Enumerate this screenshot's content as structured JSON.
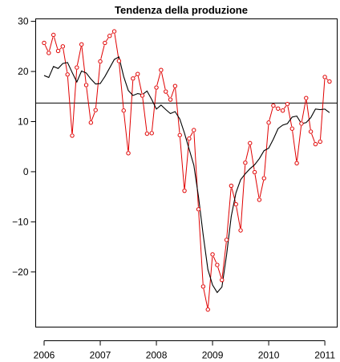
{
  "chart_data": {
    "type": "line",
    "title": "Tendenza della produzione",
    "xlabel": "",
    "ylabel": "",
    "xlim": [
      2005.85,
      2011.22
    ],
    "ylim": [
      -31,
      30.5
    ],
    "x_ticks": [
      2006,
      2007,
      2008,
      2009,
      2010,
      2011
    ],
    "x_tick_labels": [
      "2006",
      "2007",
      "2008",
      "2009",
      "2010",
      "2011"
    ],
    "y_ticks": [
      -20,
      -10,
      0,
      10,
      20,
      30
    ],
    "y_tick_labels": [
      "−20",
      "−10",
      "0",
      "10",
      "20",
      "30"
    ],
    "grid": false,
    "legend": "none",
    "colors": {
      "monthly": "#e00000",
      "trend": "#000000",
      "reference": "#000000"
    },
    "reference_line_y": 13.7,
    "x": [
      2006.0,
      2006.083,
      2006.167,
      2006.25,
      2006.333,
      2006.417,
      2006.5,
      2006.583,
      2006.667,
      2006.75,
      2006.833,
      2006.917,
      2007.0,
      2007.083,
      2007.167,
      2007.25,
      2007.333,
      2007.417,
      2007.5,
      2007.583,
      2007.667,
      2007.75,
      2007.833,
      2007.917,
      2008.0,
      2008.083,
      2008.167,
      2008.25,
      2008.333,
      2008.417,
      2008.5,
      2008.583,
      2008.667,
      2008.75,
      2008.833,
      2008.917,
      2009.0,
      2009.083,
      2009.167,
      2009.25,
      2009.333,
      2009.417,
      2009.5,
      2009.583,
      2009.667,
      2009.75,
      2009.833,
      2009.917,
      2010.0,
      2010.083,
      2010.167,
      2010.25,
      2010.333,
      2010.417,
      2010.5,
      2010.583,
      2010.667,
      2010.75,
      2010.833,
      2010.917,
      2011.0,
      2011.083
    ],
    "series": [
      {
        "values": [
          25.7,
          23.7,
          27.3,
          24.1,
          25.0,
          19.4,
          7.2,
          20.8,
          25.4,
          17.3,
          9.8,
          12.3,
          22.0,
          25.7,
          27.1,
          28.0,
          22.1,
          12.2,
          3.7,
          18.6,
          19.5,
          15.2,
          7.6,
          7.7,
          16.8,
          20.3,
          16.0,
          14.4,
          17.1,
          7.3,
          -3.8,
          6.6,
          8.3,
          -7.5,
          -22.9,
          -27.5,
          -16.5,
          -18.6,
          -21.6,
          -13.6,
          -2.8,
          -6.5,
          -11.7,
          1.8,
          5.7,
          -0.1,
          -5.6,
          -1.3,
          9.8,
          13.2,
          12.6,
          12.2,
          13.5,
          8.6,
          1.7,
          9.6,
          14.7,
          8.0,
          5.5,
          6.0,
          18.9,
          18.0
        ]
      },
      {
        "values": [
          19.2,
          18.8,
          21.0,
          20.6,
          21.6,
          21.8,
          19.8,
          17.9,
          20.1,
          19.7,
          18.5,
          17.5,
          17.6,
          19.0,
          20.7,
          22.4,
          22.9,
          19.0,
          16.2,
          15.2,
          15.6,
          15.4,
          16.1,
          14.4,
          12.5,
          13.3,
          12.4,
          11.6,
          12.0,
          10.5,
          7.7,
          4.5,
          1.3,
          -5.0,
          -12.6,
          -19.5,
          -22.6,
          -24.1,
          -23.0,
          -16.6,
          -8.9,
          -4.2,
          -1.6,
          -0.4,
          0.6,
          1.4,
          2.6,
          4.2,
          4.7,
          6.5,
          8.6,
          9.3,
          9.6,
          10.9,
          11.1,
          9.6,
          9.8,
          10.8,
          12.5,
          12.4,
          12.5,
          11.8
        ]
      }
    ]
  }
}
